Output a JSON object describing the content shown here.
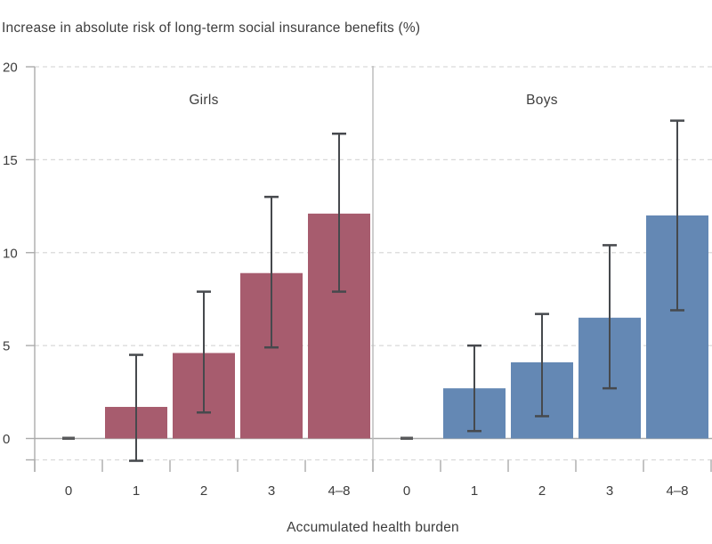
{
  "chart_data": {
    "type": "bar",
    "title": "Increase in absolute risk of long-term social insurance benefits (%)",
    "xlabel": "Accumulated health burden",
    "ylabel": "",
    "ylim": [
      -1.15,
      20
    ],
    "yticks": [
      0,
      5,
      10,
      15,
      20
    ],
    "categories": [
      "0",
      "1",
      "2",
      "3",
      "4–8"
    ],
    "grid": "horizontal dashed gridlines, solid zero line, dashed bottom border",
    "legend_position": "panel labels inside plot (faceted chart, no legend box)",
    "panels": [
      {
        "label": "Girls",
        "color": "#a75c6e",
        "values": [
          0,
          1.7,
          4.6,
          8.9,
          12.1
        ],
        "ci_low": [
          null,
          -1.2,
          1.4,
          4.9,
          7.9
        ],
        "ci_high": [
          null,
          4.5,
          7.9,
          13.0,
          16.4
        ]
      },
      {
        "label": "Boys",
        "color": "#6488b4",
        "values": [
          0,
          2.7,
          4.1,
          6.5,
          12.0
        ],
        "ci_low": [
          null,
          0.4,
          1.2,
          2.7,
          6.9
        ],
        "ci_high": [
          null,
          5.0,
          6.7,
          10.4,
          17.1
        ]
      }
    ],
    "colors": {
      "girls_bar": "#a75c6e",
      "boys_bar": "#6488b4",
      "error_bar": "#46494d",
      "grid_line": "#d9d9d9",
      "axis_line": "#ababab",
      "panel_divider": "#bdbdbd",
      "text": "#3d3d3d",
      "zero_marker": "#58595b"
    }
  }
}
